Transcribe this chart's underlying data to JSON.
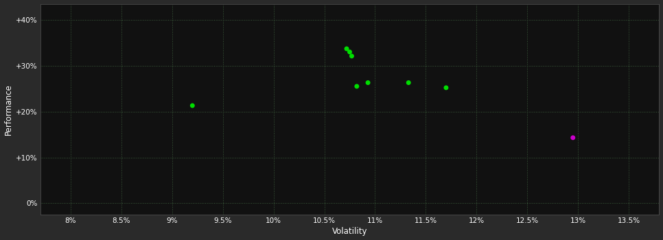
{
  "background_color": "#2a2a2a",
  "plot_bg_color": "#111111",
  "grid_color": "#3a5a3a",
  "text_color": "#ffffff",
  "xlabel": "Volatility",
  "ylabel": "Performance",
  "x_ticks": [
    0.08,
    0.085,
    0.09,
    0.095,
    0.1,
    0.105,
    0.11,
    0.115,
    0.12,
    0.125,
    0.13,
    0.135
  ],
  "x_tick_labels": [
    "8%",
    "8.5%",
    "9%",
    "9.5%",
    "10%",
    "10.5%",
    "11%",
    "11.5%",
    "12%",
    "12.5%",
    "13%",
    "13.5%"
  ],
  "y_ticks": [
    0.0,
    0.1,
    0.2,
    0.3,
    0.4
  ],
  "y_tick_labels": [
    "0%",
    "+10%",
    "+20%",
    "+30%",
    "+40%"
  ],
  "xlim": [
    0.077,
    0.138
  ],
  "ylim": [
    -0.025,
    0.435
  ],
  "green_points": [
    [
      0.1072,
      0.337
    ],
    [
      0.1075,
      0.33
    ],
    [
      0.1077,
      0.321
    ],
    [
      0.1082,
      0.255
    ],
    [
      0.1093,
      0.263
    ],
    [
      0.1133,
      0.263
    ],
    [
      0.117,
      0.252
    ],
    [
      0.092,
      0.213
    ]
  ],
  "magenta_points": [
    [
      0.1295,
      0.143
    ]
  ],
  "green_color": "#00dd00",
  "magenta_color": "#cc00cc",
  "marker_size": 5
}
